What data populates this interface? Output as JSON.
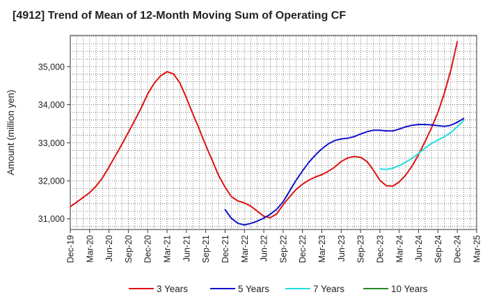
{
  "chart_data": {
    "type": "line",
    "title": "[4912]  Trend of Mean of 12-Month Moving Sum of Operating CF",
    "xlabel": "",
    "ylabel": "Amount (million yen)",
    "ylim": [
      30720,
      35820
    ],
    "yticks": [
      31000,
      32000,
      33000,
      34000,
      35000
    ],
    "ytick_labels": [
      "31,000",
      "32,000",
      "33,000",
      "34,000",
      "35,000"
    ],
    "x_start": "2019-12",
    "x_end": "2025-03",
    "xtick_labels": [
      "Dec-19",
      "Mar-20",
      "Jun-20",
      "Sep-20",
      "Dec-20",
      "Mar-21",
      "Jun-21",
      "Sep-21",
      "Dec-21",
      "Mar-22",
      "Jun-22",
      "Sep-22",
      "Dec-22",
      "Mar-23",
      "Jun-23",
      "Sep-23",
      "Dec-23",
      "Mar-24",
      "Jun-24",
      "Sep-24",
      "Dec-24",
      "Mar-25"
    ],
    "grid": true,
    "legend_position": "bottom",
    "series": [
      {
        "name": "3 Years",
        "color": "#dd1111",
        "start_index": 0,
        "values": [
          31320,
          31440,
          31560,
          31690,
          31860,
          32080,
          32360,
          32660,
          32960,
          33270,
          33590,
          33920,
          34280,
          34560,
          34760,
          34870,
          34810,
          34570,
          34180,
          33760,
          33360,
          32930,
          32540,
          32140,
          31830,
          31580,
          31470,
          31420,
          31330,
          31200,
          31070,
          31030,
          31130,
          31370,
          31580,
          31770,
          31910,
          32020,
          32100,
          32160,
          32250,
          32360,
          32510,
          32600,
          32640,
          32620,
          32510,
          32280,
          32010,
          31870,
          31860,
          31970,
          32150,
          32390,
          32690,
          33030,
          33390,
          33800,
          34310,
          34910,
          35660
        ]
      },
      {
        "name": "5 Years",
        "color": "#1111cc",
        "start_index": 24,
        "values": [
          31240,
          31010,
          30880,
          30840,
          30880,
          30940,
          31020,
          31120,
          31250,
          31450,
          31730,
          32010,
          32260,
          32490,
          32680,
          32840,
          32970,
          33060,
          33100,
          33120,
          33160,
          33230,
          33290,
          33330,
          33330,
          33310,
          33310,
          33360,
          33420,
          33460,
          33480,
          33480,
          33470,
          33450,
          33430,
          33460,
          33540,
          33640
        ]
      },
      {
        "name": "7 Years",
        "color": "#22dddd",
        "start_index": 48,
        "values": [
          32310,
          32300,
          32330,
          32400,
          32490,
          32590,
          32720,
          32860,
          32980,
          33070,
          33160,
          33270,
          33420,
          33590
        ]
      },
      {
        "name": "10 Years",
        "color": "#228822",
        "start_index": 0,
        "values": []
      }
    ]
  }
}
